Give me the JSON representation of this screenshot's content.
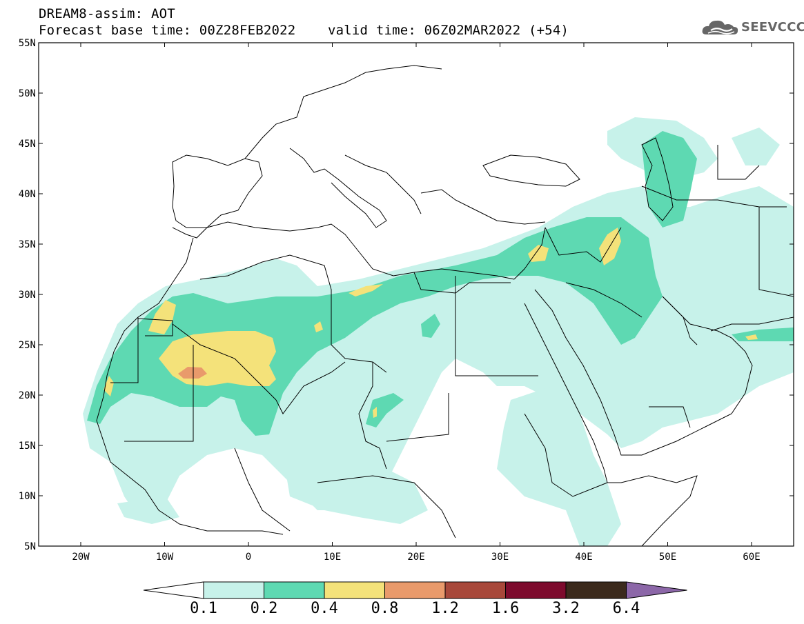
{
  "header": {
    "line1": "DREAM8-assim: AOT",
    "line2": "Forecast base time: 00Z28FEB2022    valid time: 06Z02MAR2022 (+54)"
  },
  "logo": {
    "text": "SEEVCCC",
    "icon": "cloud-icon"
  },
  "axes": {
    "lat_labels": [
      "55N",
      "50N",
      "45N",
      "40N",
      "35N",
      "30N",
      "25N",
      "20N",
      "15N",
      "10N",
      "5N"
    ],
    "lon_labels": [
      "20W",
      "10W",
      "0",
      "10E",
      "20E",
      "30E",
      "40E",
      "50E",
      "60E"
    ]
  },
  "legend": {
    "labels": [
      "0.1",
      "0.2",
      "0.4",
      "0.8",
      "1.2",
      "1.6",
      "3.2",
      "6.4"
    ],
    "colors": [
      "#ffffff",
      "#c7f2ea",
      "#5ed9b2",
      "#f4e27a",
      "#e99a6b",
      "#a8483a",
      "#7d0b2d",
      "#3b2a1c",
      "#8c67a8"
    ]
  },
  "colors": {
    "aot_0_1": "#c7f2ea",
    "aot_0_2": "#5ed9b2",
    "aot_0_4": "#f4e27a",
    "aot_0_8": "#e99a6b"
  }
}
